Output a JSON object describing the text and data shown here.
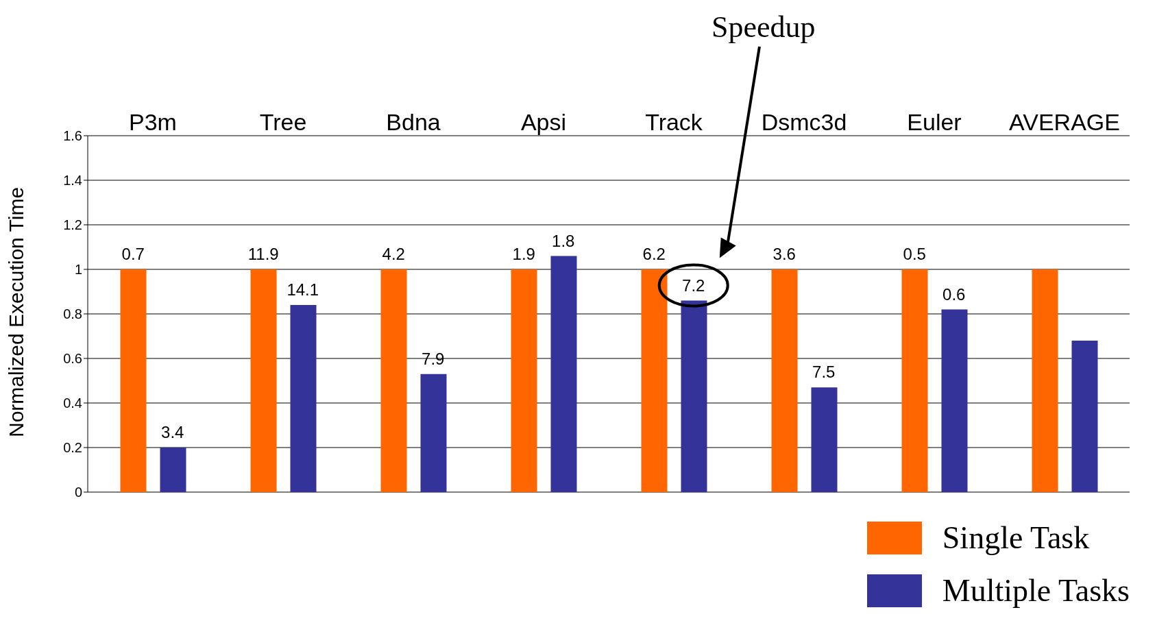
{
  "chart_data": {
    "type": "bar",
    "categories": [
      "P3m",
      "Tree",
      "Bdna",
      "Apsi",
      "Track",
      "Dsmc3d",
      "Euler",
      "AVERAGE"
    ],
    "ylabel": "Normalized Execution Time",
    "ylim": [
      0,
      1.6
    ],
    "yticks": [
      0,
      0.2,
      0.4,
      0.6,
      0.8,
      1,
      1.2,
      1.4,
      1.6
    ],
    "grid": "y",
    "legend": "bottom right",
    "annotations": [
      "Speedup",
      "0.7",
      "3.4",
      "11.9",
      "14.1",
      "4.2",
      "7.9",
      "1.9",
      "1.8",
      "6.2",
      "7.2",
      "3.6",
      "7.5",
      "0.5",
      "0.6"
    ],
    "series": [
      {
        "name": "Single Task",
        "color": "#ff6600",
        "values": [
          1,
          1,
          1,
          1,
          1,
          1,
          1,
          1
        ]
      },
      {
        "name": "Multiple Tasks",
        "color": "#333399",
        "values": [
          0.2,
          0.84,
          0.53,
          1.06,
          0.86,
          0.47,
          0.82,
          0.68
        ]
      }
    ]
  }
}
